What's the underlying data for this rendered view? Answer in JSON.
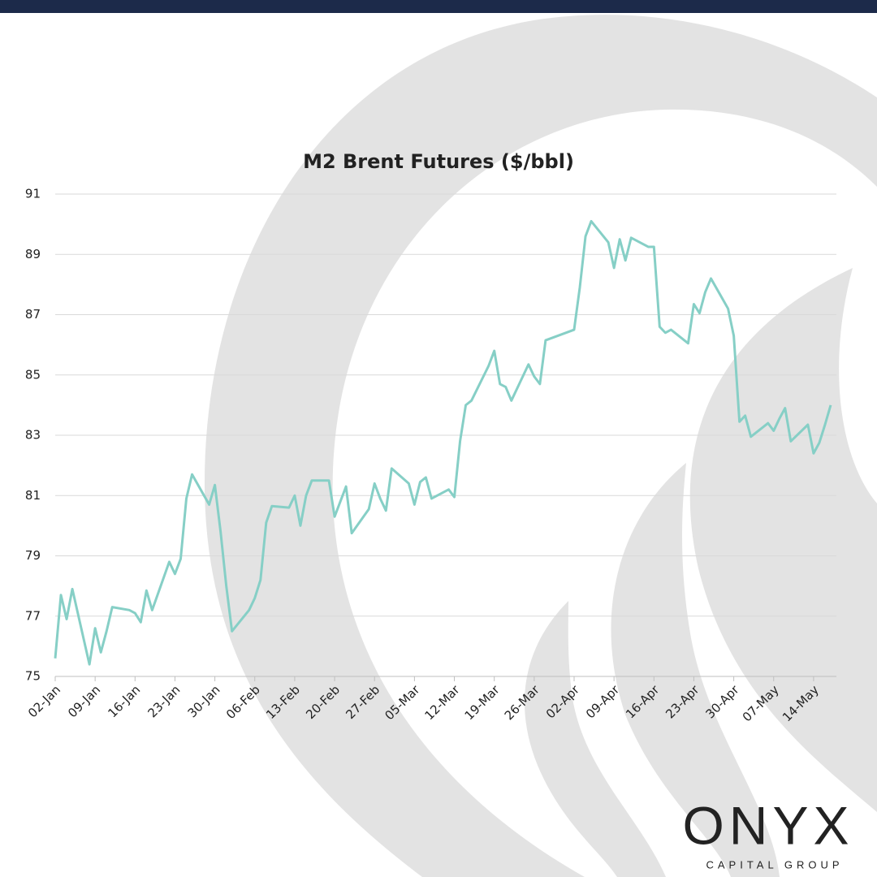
{
  "chart_data": {
    "type": "line",
    "title": "M2 Brent Futures ($/bbl)",
    "x": [
      "02-Jan",
      "03-Jan",
      "04-Jan",
      "05-Jan",
      "08-Jan",
      "09-Jan",
      "10-Jan",
      "11-Jan",
      "12-Jan",
      "15-Jan",
      "16-Jan",
      "17-Jan",
      "18-Jan",
      "19-Jan",
      "22-Jan",
      "23-Jan",
      "24-Jan",
      "25-Jan",
      "26-Jan",
      "29-Jan",
      "30-Jan",
      "31-Jan",
      "01-Feb",
      "02-Feb",
      "05-Feb",
      "06-Feb",
      "07-Feb",
      "08-Feb",
      "09-Feb",
      "12-Feb",
      "13-Feb",
      "14-Feb",
      "15-Feb",
      "16-Feb",
      "19-Feb",
      "20-Feb",
      "21-Feb",
      "22-Feb",
      "23-Feb",
      "26-Feb",
      "27-Feb",
      "28-Feb",
      "29-Feb",
      "01-Mar",
      "04-Mar",
      "05-Mar",
      "06-Mar",
      "07-Mar",
      "08-Mar",
      "11-Mar",
      "12-Mar",
      "13-Mar",
      "14-Mar",
      "15-Mar",
      "18-Mar",
      "19-Mar",
      "20-Mar",
      "21-Mar",
      "22-Mar",
      "25-Mar",
      "26-Mar",
      "27-Mar",
      "28-Mar",
      "02-Apr",
      "03-Apr",
      "04-Apr",
      "05-Apr",
      "08-Apr",
      "09-Apr",
      "10-Apr",
      "11-Apr",
      "12-Apr",
      "15-Apr",
      "16-Apr",
      "17-Apr",
      "18-Apr",
      "19-Apr",
      "22-Apr",
      "23-Apr",
      "24-Apr",
      "25-Apr",
      "26-Apr",
      "29-Apr",
      "30-Apr",
      "01-May",
      "02-May",
      "03-May",
      "06-May",
      "07-May",
      "08-May",
      "09-May",
      "10-May",
      "13-May",
      "14-May",
      "15-May",
      "16-May",
      "17-May"
    ],
    "series": [
      {
        "name": "M2 Brent",
        "color": "#86cfc6",
        "values": [
          75.6,
          77.7,
          76.9,
          77.9,
          75.4,
          76.6,
          75.8,
          76.5,
          77.3,
          77.2,
          77.1,
          76.8,
          77.85,
          77.2,
          78.8,
          78.4,
          78.9,
          80.9,
          81.7,
          80.7,
          81.35,
          79.8,
          78.0,
          76.5,
          77.2,
          77.6,
          78.2,
          80.1,
          80.65,
          80.6,
          81.0,
          80.0,
          81.0,
          81.5,
          81.5,
          80.3,
          80.8,
          81.3,
          79.75,
          80.55,
          81.4,
          80.9,
          80.5,
          81.9,
          81.4,
          80.7,
          81.45,
          81.6,
          80.9,
          81.2,
          80.95,
          82.8,
          84.0,
          84.15,
          85.3,
          85.8,
          84.7,
          84.6,
          84.15,
          85.35,
          84.95,
          84.7,
          86.15,
          86.5,
          87.9,
          89.6,
          90.1,
          89.4,
          88.55,
          89.5,
          88.8,
          89.55,
          89.25,
          89.25,
          86.6,
          86.4,
          86.5,
          86.05,
          87.35,
          87.05,
          87.75,
          88.2,
          87.2,
          86.3,
          83.45,
          83.65,
          82.95,
          83.4,
          83.15,
          83.55,
          83.9,
          82.8,
          83.35,
          82.4,
          82.75,
          83.35,
          84.0
        ]
      }
    ],
    "xlim": [
      "02-Jan",
      "18-May"
    ],
    "xticks": [
      "02-Jan",
      "09-Jan",
      "16-Jan",
      "23-Jan",
      "30-Jan",
      "06-Feb",
      "13-Feb",
      "20-Feb",
      "27-Feb",
      "05-Mar",
      "12-Mar",
      "19-Mar",
      "26-Mar",
      "02-Apr",
      "09-Apr",
      "16-Apr",
      "23-Apr",
      "30-Apr",
      "07-May",
      "14-May"
    ],
    "ylim": [
      75,
      91
    ],
    "yticks": [
      75,
      77,
      79,
      81,
      83,
      85,
      87,
      89,
      91
    ],
    "grid": true
  },
  "logo": {
    "name": "ONYX",
    "tagline": "CAPITAL GROUP"
  }
}
